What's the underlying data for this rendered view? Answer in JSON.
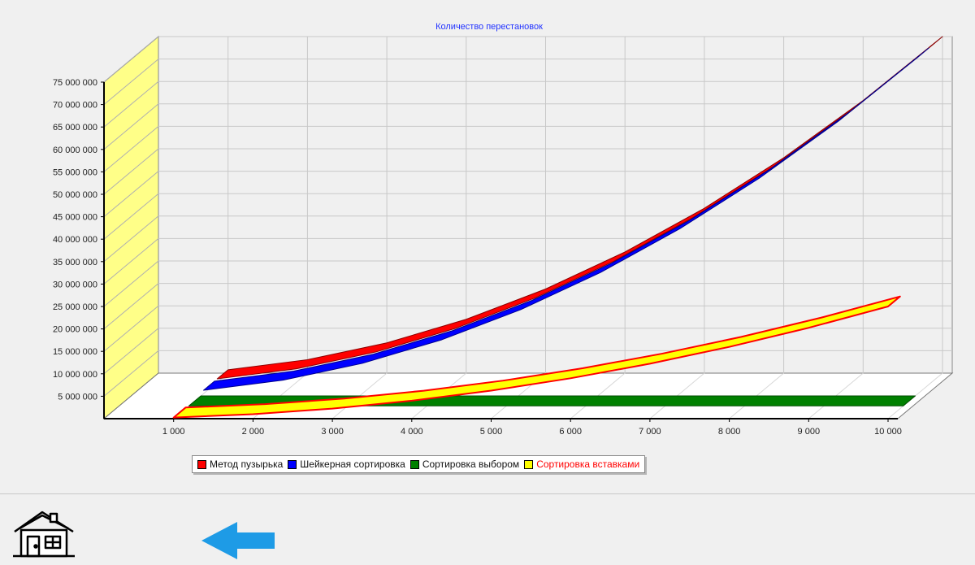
{
  "chart_data": {
    "type": "line",
    "style": "3d",
    "title": "Количество перестановок",
    "xlabel": "",
    "ylabel": "",
    "x": [
      1000,
      2000,
      3000,
      4000,
      5000,
      6000,
      7000,
      8000,
      9000,
      10000
    ],
    "x_tick_labels": [
      "1 000",
      "2 000",
      "3 000",
      "4 000",
      "5 000",
      "6 000",
      "7 000",
      "8 000",
      "9 000",
      "10 000"
    ],
    "y_tick_labels": [
      "5 000 000",
      "10 000 000",
      "15 000 000",
      "20 000 000",
      "25 000 000",
      "30 000 000",
      "35 000 000",
      "40 000 000",
      "45 000 000",
      "50 000 000",
      "55 000 000",
      "60 000 000",
      "65 000 000",
      "70 000 000",
      "75 000 000"
    ],
    "ylim": [
      0,
      75000000
    ],
    "grid": true,
    "legend_position": "bottom",
    "series": [
      {
        "name": "Метод пузырька",
        "color": "#ff0000",
        "values": [
          750000,
          3000000,
          6750000,
          12000000,
          18750000,
          27000000,
          36750000,
          48000000,
          60750000,
          75000000
        ]
      },
      {
        "name": "Шейкерная сортировка",
        "color": "#0000ff",
        "values": [
          750000,
          3000000,
          6750000,
          12000000,
          18750000,
          27000000,
          36750000,
          48000000,
          60750000,
          75000000
        ]
      },
      {
        "name": "Сортировка выбором",
        "color": "#008000",
        "values": [
          1000,
          2000,
          3000,
          4000,
          5000,
          6000,
          7000,
          8000,
          9000,
          10000
        ]
      },
      {
        "name": "Сортировка вставками",
        "color": "#ffff00",
        "values": [
          250000,
          1000000,
          2250000,
          4000000,
          6250000,
          9000000,
          12250000,
          16000000,
          20250000,
          25000000
        ]
      }
    ]
  },
  "icons": {
    "home": "home-icon",
    "back": "arrow-left-icon"
  },
  "colors": {
    "title": "#2233ff",
    "back_arrow": "#1e9be6",
    "wall": "#ffff88"
  }
}
